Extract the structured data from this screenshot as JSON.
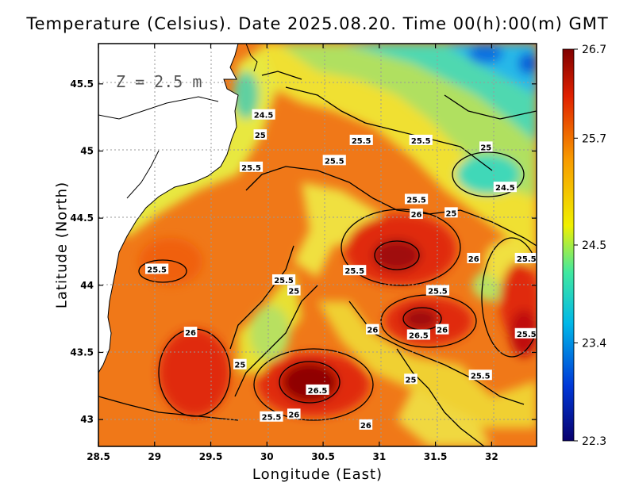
{
  "title": "Temperature (Celsius). Date 2025.08.20. Time 00(h):00(m) GMT",
  "depth_label": "Z = 2.5 m",
  "chart_data": {
    "type": "heatmap",
    "variable": "Temperature",
    "unit": "Celsius",
    "xlabel": "Longitude (East)",
    "ylabel": "Latitude (North)",
    "xlim": [
      28.5,
      32.4
    ],
    "ylim": [
      42.8,
      45.8
    ],
    "xticks": [
      "28.5",
      "29",
      "29.5",
      "30",
      "30.5",
      "31",
      "31.5",
      "32"
    ],
    "yticks": [
      "43",
      "43.5",
      "44",
      "44.5",
      "45",
      "45.5"
    ],
    "grid": true,
    "colorbar": {
      "min": 22.3,
      "max": 26.7,
      "ticks": [
        "26.7",
        "25.7",
        "24.5",
        "23.4",
        "22.3"
      ],
      "colors": [
        "#08006e",
        "#0038d8",
        "#00b8e8",
        "#40e8a0",
        "#f0f000",
        "#f89a00",
        "#e02000",
        "#800000"
      ]
    },
    "contours": [
      {
        "label": "24.5",
        "lon": 29.97,
        "lat": 45.27
      },
      {
        "label": "25",
        "lon": 29.94,
        "lat": 45.12
      },
      {
        "label": "25.5",
        "lon": 29.86,
        "lat": 44.88
      },
      {
        "label": "25.5",
        "lon": 30.6,
        "lat": 44.93
      },
      {
        "label": "25.5",
        "lon": 30.84,
        "lat": 45.08
      },
      {
        "label": "25.5",
        "lon": 31.37,
        "lat": 45.08
      },
      {
        "label": "25",
        "lon": 31.95,
        "lat": 45.03
      },
      {
        "label": "24.5",
        "lon": 32.12,
        "lat": 44.73
      },
      {
        "label": "25.5",
        "lon": 31.33,
        "lat": 44.64
      },
      {
        "label": "25",
        "lon": 31.64,
        "lat": 44.54
      },
      {
        "label": "26",
        "lon": 31.33,
        "lat": 44.53
      },
      {
        "label": "26",
        "lon": 31.84,
        "lat": 44.2
      },
      {
        "label": "25.5",
        "lon": 32.31,
        "lat": 44.2
      },
      {
        "label": "25.5",
        "lon": 30.78,
        "lat": 44.11
      },
      {
        "label": "25.5",
        "lon": 29.02,
        "lat": 44.12
      },
      {
        "label": "25.5",
        "lon": 30.15,
        "lat": 44.04
      },
      {
        "label": "25",
        "lon": 30.24,
        "lat": 43.96
      },
      {
        "label": "25.5",
        "lon": 31.52,
        "lat": 43.96
      },
      {
        "label": "26",
        "lon": 30.94,
        "lat": 43.67
      },
      {
        "label": "26.5",
        "lon": 31.35,
        "lat": 43.63
      },
      {
        "label": "26",
        "lon": 31.56,
        "lat": 43.67
      },
      {
        "label": "25.5",
        "lon": 32.31,
        "lat": 43.64
      },
      {
        "label": "26",
        "lon": 29.32,
        "lat": 43.65
      },
      {
        "label": "25",
        "lon": 29.76,
        "lat": 43.41
      },
      {
        "label": "25.5",
        "lon": 31.9,
        "lat": 43.33
      },
      {
        "label": "25",
        "lon": 31.28,
        "lat": 43.3
      },
      {
        "label": "26.5",
        "lon": 30.45,
        "lat": 43.22
      },
      {
        "label": "25.5",
        "lon": 30.04,
        "lat": 43.02
      },
      {
        "label": "26",
        "lon": 30.24,
        "lat": 43.04
      },
      {
        "label": "26",
        "lon": 30.88,
        "lat": 42.96
      }
    ]
  }
}
